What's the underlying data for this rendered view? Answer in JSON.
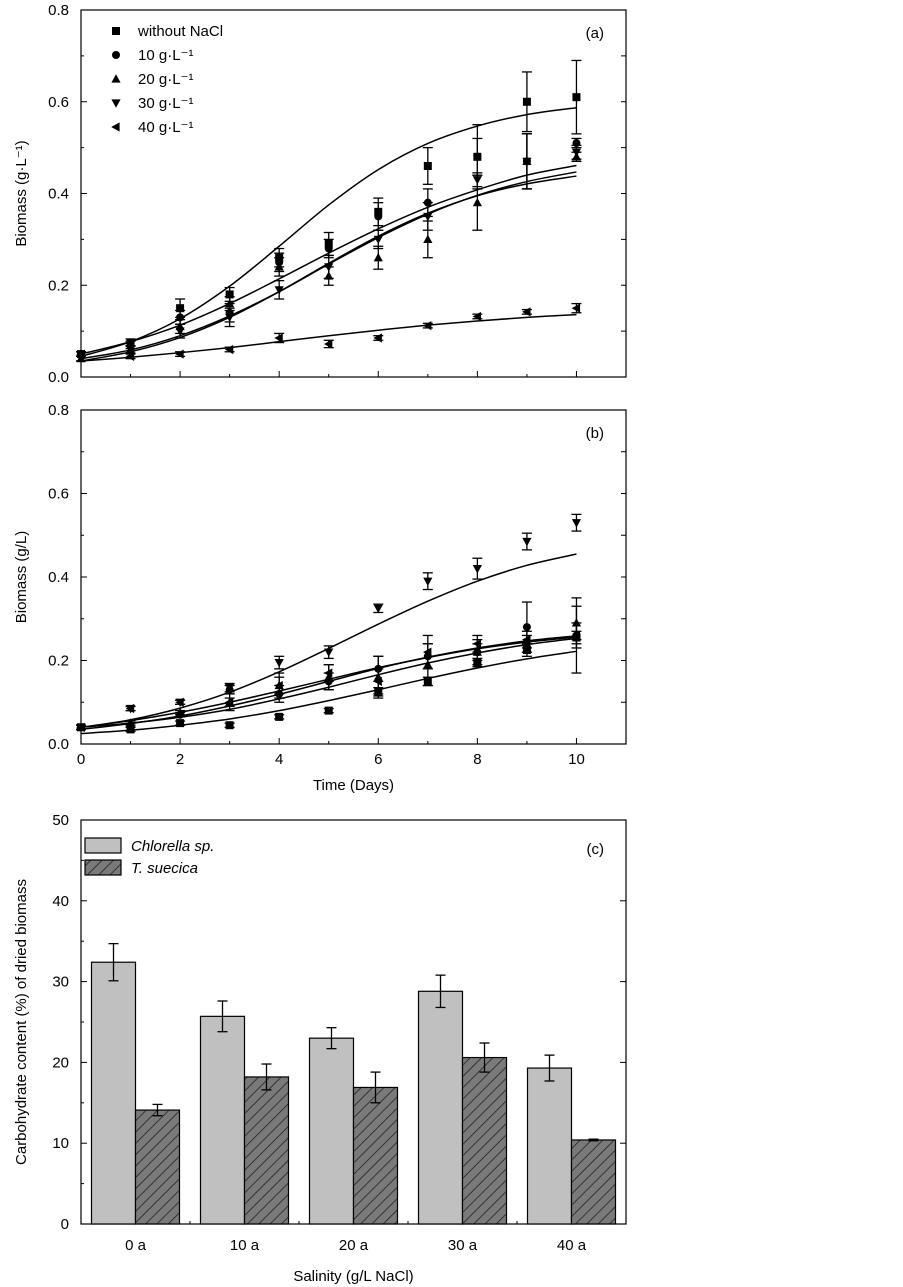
{
  "chart_data": [
    {
      "type": "scatter",
      "panel_label": "(a)",
      "xlabel": "",
      "ylabel": "Biomass (g·L⁻¹)",
      "xlim": [
        0,
        11
      ],
      "ylim": [
        0,
        0.8
      ],
      "x_ticks": [
        0,
        2,
        4,
        6,
        8,
        10
      ],
      "show_x_tick_labels": false,
      "y_ticks": [
        0.0,
        0.2,
        0.4,
        0.6,
        0.8
      ],
      "y_tick_labels": [
        "0.0",
        "0.2",
        "0.4",
        "0.6",
        "0.8"
      ],
      "legend": "top-left",
      "series": [
        {
          "name": "without NaCl",
          "marker": "square",
          "x": [
            0,
            1,
            2,
            3,
            4,
            5,
            6,
            7,
            8,
            9,
            10
          ],
          "y": [
            0.05,
            0.075,
            0.15,
            0.18,
            0.26,
            0.29,
            0.36,
            0.46,
            0.48,
            0.6,
            0.61
          ],
          "err": [
            0.005,
            0.008,
            0.02,
            0.015,
            0.02,
            0.025,
            0.03,
            0.04,
            0.07,
            0.065,
            0.08
          ],
          "fit": [
            0.045,
            0.077,
            0.127,
            0.198,
            0.285,
            0.375,
            0.452,
            0.509,
            0.547,
            0.572,
            0.587
          ]
        },
        {
          "name": "10 g·L⁻¹",
          "marker": "circle",
          "x": [
            0,
            1,
            2,
            3,
            4,
            5,
            6,
            7,
            8,
            9,
            10
          ],
          "y": [
            0.05,
            0.07,
            0.13,
            0.14,
            0.25,
            0.28,
            0.35,
            0.38,
            0.48,
            0.47,
            0.51
          ],
          "err": [
            0.005,
            0.008,
            0.015,
            0.02,
            0.02,
            0.02,
            0.03,
            0.03,
            0.04,
            0.06,
            0.01
          ],
          "fit": [
            0.05,
            0.077,
            0.113,
            0.16,
            0.214,
            0.27,
            0.323,
            0.37,
            0.408,
            0.44,
            0.461
          ]
        },
        {
          "name": "20 g·L⁻¹",
          "marker": "triangle-up",
          "x": [
            0,
            1,
            2,
            3,
            4,
            5,
            6,
            7,
            8,
            9,
            10
          ],
          "y": [
            0.04,
            0.06,
            0.11,
            0.16,
            0.24,
            0.22,
            0.26,
            0.3,
            0.38,
            0.47,
            0.48
          ],
          "err": [
            0.005,
            0.008,
            0.015,
            0.015,
            0.02,
            0.02,
            0.025,
            0.04,
            0.06,
            0.06,
            0.01
          ],
          "fit": [
            0.04,
            0.059,
            0.09,
            0.133,
            0.186,
            0.246,
            0.304,
            0.355,
            0.396,
            0.426,
            0.447
          ]
        },
        {
          "name": "30 g·L⁻¹",
          "marker": "triangle-down",
          "x": [
            0,
            1,
            2,
            3,
            4,
            5,
            6,
            7,
            8,
            9,
            10
          ],
          "y": [
            0.04,
            0.06,
            0.1,
            0.13,
            0.19,
            0.24,
            0.3,
            0.35,
            0.43,
            0.47,
            0.49
          ],
          "err": [
            0.005,
            0.008,
            0.015,
            0.02,
            0.02,
            0.025,
            0.02,
            0.03,
            0.015,
            0.06,
            0.015
          ],
          "fit": [
            0.035,
            0.055,
            0.086,
            0.13,
            0.186,
            0.248,
            0.307,
            0.357,
            0.395,
            0.421,
            0.438
          ]
        },
        {
          "name": "40 g·L⁻¹",
          "marker": "triangle-left",
          "x": [
            0,
            1,
            2,
            3,
            4,
            5,
            6,
            7,
            8,
            9,
            10
          ],
          "y": [
            0.05,
            0.045,
            0.05,
            0.06,
            0.085,
            0.072,
            0.085,
            0.112,
            0.132,
            0.142,
            0.15
          ],
          "err": [
            0.005,
            0.005,
            0.005,
            0.005,
            0.01,
            0.008,
            0.005,
            0.005,
            0.005,
            0.005,
            0.01
          ],
          "fit": [
            0.035,
            0.043,
            0.053,
            0.064,
            0.077,
            0.09,
            0.102,
            0.113,
            0.122,
            0.13,
            0.136
          ]
        }
      ]
    },
    {
      "type": "scatter",
      "panel_label": "(b)",
      "xlabel": "Time (Days)",
      "ylabel": "Biomass (g/L)",
      "xlim": [
        0,
        11
      ],
      "ylim": [
        0,
        0.8
      ],
      "x_ticks": [
        0,
        2,
        4,
        6,
        8,
        10
      ],
      "x_tick_labels": [
        "0",
        "2",
        "4",
        "6",
        "8",
        "10"
      ],
      "show_x_tick_labels": true,
      "y_ticks": [
        0.0,
        0.2,
        0.4,
        0.6,
        0.8
      ],
      "y_tick_labels": [
        "0.0",
        "0.2",
        "0.4",
        "0.6",
        "0.8"
      ],
      "series": [
        {
          "name": "without NaCl",
          "marker": "square",
          "x": [
            0,
            1,
            2,
            3,
            4,
            5,
            6,
            7,
            8,
            9,
            10
          ],
          "y": [
            0.04,
            0.035,
            0.05,
            0.045,
            0.065,
            0.08,
            0.125,
            0.15,
            0.195,
            0.225,
            0.255
          ],
          "err": [
            0.005,
            0.005,
            0.005,
            0.005,
            0.005,
            0.005,
            0.01,
            0.01,
            0.01,
            0.015,
            0.015
          ],
          "fit": [
            0.025,
            0.033,
            0.045,
            0.06,
            0.08,
            0.104,
            0.13,
            0.157,
            0.182,
            0.204,
            0.222
          ]
        },
        {
          "name": "10 g·L⁻¹",
          "marker": "circle",
          "x": [
            0,
            1,
            2,
            3,
            4,
            5,
            6,
            7,
            8,
            9,
            10
          ],
          "y": [
            0.04,
            0.045,
            0.07,
            0.13,
            0.12,
            0.15,
            0.18,
            0.21,
            0.22,
            0.28,
            0.26
          ],
          "err": [
            0.005,
            0.005,
            0.005,
            0.01,
            0.02,
            0.02,
            0.03,
            0.03,
            0.03,
            0.06,
            0.09
          ],
          "fit": [
            0.04,
            0.05,
            0.064,
            0.083,
            0.108,
            0.136,
            0.166,
            0.194,
            0.218,
            0.238,
            0.253
          ]
        },
        {
          "name": "20 g·L⁻¹",
          "marker": "triangle-up",
          "x": [
            0,
            1,
            2,
            3,
            4,
            5,
            6,
            7,
            8,
            9,
            10
          ],
          "y": [
            0.04,
            0.05,
            0.075,
            0.1,
            0.14,
            0.16,
            0.16,
            0.19,
            0.22,
            0.24,
            0.29
          ],
          "err": [
            0.005,
            0.005,
            0.005,
            0.02,
            0.03,
            0.03,
            0.05,
            0.05,
            0.02,
            0.02,
            0.04
          ],
          "fit": [
            0.035,
            0.049,
            0.067,
            0.091,
            0.119,
            0.15,
            0.181,
            0.208,
            0.23,
            0.247,
            0.259
          ]
        },
        {
          "name": "30 g·L⁻¹",
          "marker": "triangle-down",
          "x": [
            0,
            1,
            2,
            3,
            4,
            5,
            6,
            7,
            8,
            9,
            10
          ],
          "y": [
            0.04,
            0.085,
            0.1,
            0.135,
            0.195,
            0.22,
            0.325,
            0.39,
            0.42,
            0.485,
            0.53
          ],
          "err": [
            0.005,
            0.005,
            0.005,
            0.01,
            0.015,
            0.015,
            0.01,
            0.02,
            0.025,
            0.02,
            0.02
          ],
          "fit": [
            0.04,
            0.058,
            0.086,
            0.124,
            0.173,
            0.229,
            0.287,
            0.342,
            0.39,
            0.428,
            0.455
          ]
        },
        {
          "name": "40 g·L⁻¹",
          "marker": "triangle-left",
          "x": [
            0,
            1,
            2,
            3,
            4,
            5,
            6,
            7,
            8,
            9,
            10
          ],
          "y": [
            0.04,
            0.085,
            0.1,
            0.1,
            0.14,
            0.17,
            0.15,
            0.22,
            0.24,
            0.25,
            0.26
          ],
          "err": [
            0.005,
            0.005,
            0.005,
            0.01,
            0.02,
            0.02,
            0.03,
            0.04,
            0.02,
            0.02,
            0.03
          ],
          "fit": [
            0.04,
            0.056,
            0.076,
            0.1,
            0.127,
            0.155,
            0.183,
            0.207,
            0.228,
            0.244,
            0.256
          ]
        }
      ]
    },
    {
      "type": "bar",
      "panel_label": "(c)",
      "xlabel": "Salinity (g/L NaCl)",
      "ylabel": "Carbohydrate content (%) of dried biomass",
      "ylim": [
        0,
        50
      ],
      "y_ticks": [
        0,
        10,
        20,
        30,
        40,
        50
      ],
      "y_tick_labels": [
        "0",
        "10",
        "20",
        "30",
        "40",
        "50"
      ],
      "categories": [
        "0",
        "10",
        "20",
        "30",
        "40"
      ],
      "category_suffix": "a",
      "legend": "top-left",
      "series": [
        {
          "name": "Chlorella sp.",
          "fill": "#c0c0c0",
          "hatched": false,
          "values": [
            32.4,
            25.7,
            23.0,
            28.8,
            19.3
          ],
          "err": [
            2.3,
            1.9,
            1.3,
            2.0,
            1.6
          ]
        },
        {
          "name": "T. suecica",
          "fill": "#7a7a7a",
          "hatched": true,
          "values": [
            14.1,
            18.2,
            16.9,
            20.6,
            10.4
          ],
          "err": [
            0.7,
            1.6,
            1.9,
            1.8,
            0.1
          ]
        }
      ]
    }
  ]
}
